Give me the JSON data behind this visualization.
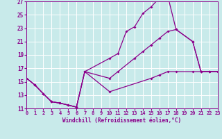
{
  "xlabel": "Windchill (Refroidissement éolien,°C)",
  "xlim": [
    0,
    23
  ],
  "ylim": [
    11,
    27
  ],
  "xticks": [
    0,
    1,
    2,
    3,
    4,
    5,
    6,
    7,
    8,
    9,
    10,
    11,
    12,
    13,
    14,
    15,
    16,
    17,
    18,
    19,
    20,
    21,
    22,
    23
  ],
  "yticks": [
    11,
    13,
    15,
    17,
    19,
    21,
    23,
    25,
    27
  ],
  "bg_color": "#c8eaea",
  "grid_color": "#ffffff",
  "line_color": "#8b008b",
  "series1_x": [
    0,
    1,
    2,
    3,
    4,
    5,
    6,
    7,
    10,
    11,
    12,
    13,
    14,
    15,
    16,
    17,
    18,
    20,
    21,
    22,
    23
  ],
  "series1_y": [
    15.5,
    14.5,
    13.2,
    12.0,
    11.8,
    11.5,
    11.2,
    16.5,
    18.5,
    19.2,
    22.5,
    23.2,
    25.2,
    26.2,
    27.5,
    27.8,
    22.8,
    21.0,
    16.5,
    16.5,
    16.5
  ],
  "series2_x": [
    0,
    1,
    2,
    3,
    4,
    5,
    6,
    7,
    10,
    11,
    13,
    14,
    15,
    16,
    17,
    18,
    20,
    21,
    22,
    23
  ],
  "series2_y": [
    15.5,
    14.5,
    13.2,
    12.0,
    11.8,
    11.5,
    11.2,
    16.5,
    15.5,
    16.5,
    18.5,
    19.5,
    20.5,
    21.5,
    22.5,
    22.8,
    21.0,
    16.5,
    16.5,
    16.5
  ],
  "series3_x": [
    0,
    1,
    2,
    3,
    4,
    5,
    6,
    7,
    10,
    15,
    16,
    17,
    18,
    20,
    21,
    22,
    23
  ],
  "series3_y": [
    15.5,
    14.5,
    13.2,
    12.0,
    11.8,
    11.5,
    11.2,
    16.5,
    13.5,
    15.5,
    16.0,
    16.5,
    16.5,
    16.5,
    16.5,
    16.5,
    16.5
  ]
}
